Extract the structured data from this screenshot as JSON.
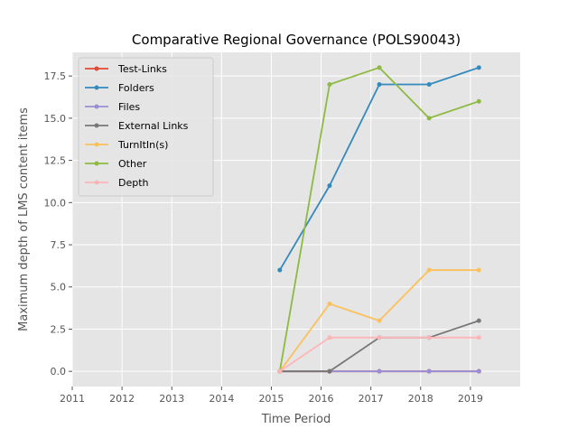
{
  "chart_data": {
    "type": "line",
    "title": "Comparative Regional Governance (POLS90043)",
    "xlabel": "Time Period",
    "ylabel": "Maximum depth of LMS content items",
    "xlim": [
      2011,
      2020
    ],
    "ylim": [
      -0.9,
      18.9
    ],
    "x_ticks": [
      2011,
      2012,
      2013,
      2014,
      2015,
      2016,
      2017,
      2018,
      2019
    ],
    "y_ticks": [
      0.0,
      2.5,
      5.0,
      7.5,
      10.0,
      12.5,
      15.0,
      17.5
    ],
    "x_tick_labels": [
      "2011",
      "2012",
      "2013",
      "2014",
      "2015",
      "2016",
      "2017",
      "2018",
      "2019"
    ],
    "y_tick_labels": [
      "0.0",
      "2.5",
      "5.0",
      "7.5",
      "10.0",
      "12.5",
      "15.0",
      "17.5"
    ],
    "grid": true,
    "legend_position": "top-left",
    "x": [
      2015.17,
      2016.17,
      2017.17,
      2018.17,
      2019.17
    ],
    "series": [
      {
        "name": "Test-Links",
        "color": "#E24A33",
        "values": [
          0,
          0,
          0,
          0,
          0
        ]
      },
      {
        "name": "Folders",
        "color": "#348ABD",
        "values": [
          6,
          11,
          17,
          17,
          18
        ]
      },
      {
        "name": "Files",
        "color": "#988ED5",
        "values": [
          0,
          0,
          0,
          0,
          0
        ]
      },
      {
        "name": "External Links",
        "color": "#777777",
        "values": [
          0,
          0,
          2,
          2,
          3
        ]
      },
      {
        "name": "TurnItIn(s)",
        "color": "#FBC15E",
        "values": [
          0,
          4,
          3,
          6,
          6
        ]
      },
      {
        "name": "Other",
        "color": "#8EBA42",
        "values": [
          0,
          17,
          18,
          15,
          16
        ]
      },
      {
        "name": "Depth",
        "color": "#FFB5B8",
        "values": [
          0,
          2,
          2,
          2,
          2
        ]
      }
    ]
  }
}
